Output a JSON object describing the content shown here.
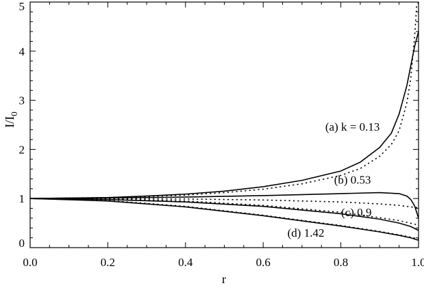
{
  "chart_data": {
    "type": "line",
    "title": "",
    "xlabel": "r",
    "ylabel": "I/I",
    "ylabel_subscript": "0",
    "xlim": [
      0.0,
      1.0
    ],
    "ylim": [
      0,
      5
    ],
    "x_ticks": [
      "0.0",
      "0.2",
      "0.4",
      "0.6",
      "0.8",
      "1.0"
    ],
    "y_ticks": [
      "0",
      "1",
      "2",
      "3",
      "4",
      "5"
    ],
    "grid": false,
    "legend": "none",
    "annotations": [
      {
        "text": "(a) k = 0.13",
        "x": 0.83,
        "y": 2.38
      },
      {
        "text": "(b) 0.53",
        "x": 0.83,
        "y": 1.3
      },
      {
        "text": "(c) 0.9",
        "x": 0.84,
        "y": 0.64
      },
      {
        "text": "(d) 1.42",
        "x": 0.71,
        "y": 0.22
      }
    ],
    "series": [
      {
        "curve": "a",
        "style": "solid",
        "x": [
          0,
          0.1,
          0.2,
          0.3,
          0.4,
          0.5,
          0.6,
          0.7,
          0.8,
          0.85,
          0.9,
          0.93,
          0.95,
          0.97,
          0.98,
          0.99,
          1.0
        ],
        "y": [
          1.0,
          1.01,
          1.02,
          1.05,
          1.09,
          1.15,
          1.24,
          1.37,
          1.56,
          1.74,
          2.04,
          2.33,
          2.72,
          3.3,
          3.7,
          4.1,
          4.4
        ]
      },
      {
        "curve": "a",
        "style": "dotted",
        "x": [
          0,
          0.1,
          0.2,
          0.3,
          0.4,
          0.5,
          0.6,
          0.7,
          0.8,
          0.85,
          0.9,
          0.93,
          0.95,
          0.97,
          0.98,
          0.99,
          0.995,
          1.0
        ],
        "y": [
          1.0,
          1.01,
          1.02,
          1.04,
          1.07,
          1.12,
          1.19,
          1.3,
          1.47,
          1.61,
          1.86,
          2.1,
          2.38,
          2.95,
          3.45,
          4.3,
          4.9,
          5.0
        ]
      },
      {
        "curve": "b",
        "style": "solid",
        "x": [
          0,
          0.2,
          0.4,
          0.6,
          0.8,
          0.9,
          0.95,
          0.97,
          0.98,
          0.99,
          1.0
        ],
        "y": [
          1.0,
          1.01,
          1.03,
          1.06,
          1.1,
          1.12,
          1.1,
          1.05,
          0.98,
          0.85,
          0.6
        ]
      },
      {
        "curve": "b",
        "style": "dotted",
        "x": [
          0,
          0.2,
          0.4,
          0.6,
          0.8,
          0.9,
          0.95,
          1.0
        ],
        "y": [
          1.0,
          1.0,
          0.99,
          0.97,
          0.93,
          0.89,
          0.86,
          0.81
        ]
      },
      {
        "curve": "c",
        "style": "solid",
        "x": [
          0,
          0.2,
          0.4,
          0.6,
          0.8,
          0.9,
          0.95,
          0.98,
          1.0
        ],
        "y": [
          1.0,
          0.98,
          0.93,
          0.84,
          0.69,
          0.58,
          0.5,
          0.43,
          0.35
        ]
      },
      {
        "curve": "c",
        "style": "dotted",
        "x": [
          0,
          0.2,
          0.4,
          0.6,
          0.8,
          0.9,
          0.95,
          1.0
        ],
        "y": [
          1.0,
          0.99,
          0.95,
          0.86,
          0.72,
          0.61,
          0.55,
          0.46
        ]
      },
      {
        "curve": "d",
        "style": "solid",
        "x": [
          0,
          0.2,
          0.4,
          0.6,
          0.8,
          0.9,
          0.95,
          0.98,
          1.0
        ],
        "y": [
          1.0,
          0.95,
          0.83,
          0.65,
          0.44,
          0.32,
          0.25,
          0.2,
          0.15
        ]
      },
      {
        "curve": "d",
        "style": "dotted",
        "x": [
          0,
          0.2,
          0.4,
          0.6,
          0.8,
          0.9,
          0.95,
          1.0
        ],
        "y": [
          1.0,
          0.96,
          0.84,
          0.66,
          0.45,
          0.33,
          0.26,
          0.18
        ]
      }
    ]
  }
}
